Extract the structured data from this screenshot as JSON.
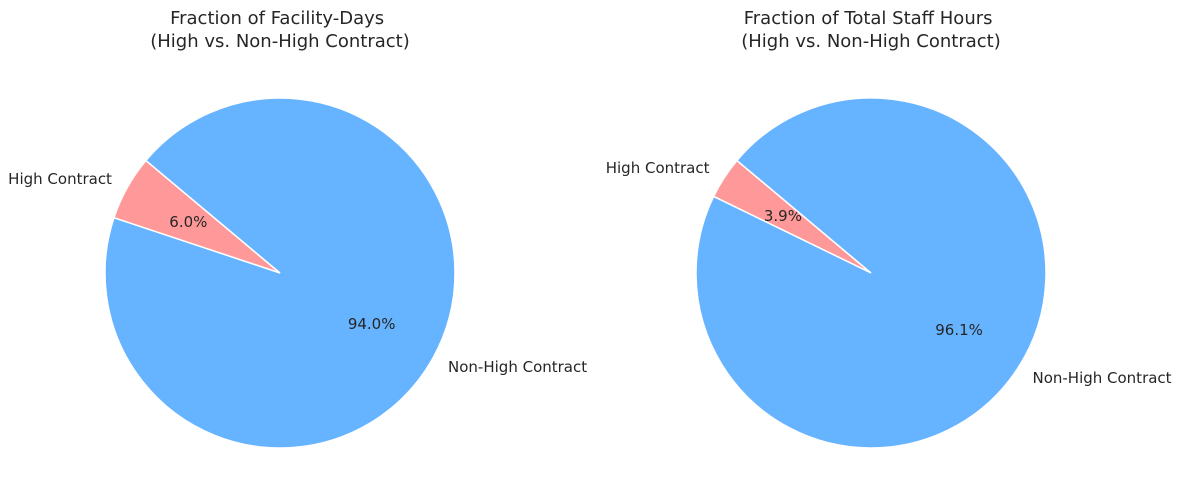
{
  "chart_data": [
    {
      "type": "pie",
      "title": [
        "Fraction of Facility-Days",
        "(High vs. Non-High Contract)"
      ],
      "categories": [
        "High Contract",
        "Non-High Contract"
      ],
      "values": [
        6.0,
        94.0
      ],
      "value_labels": [
        "6.0%",
        "94.0%"
      ],
      "colors": [
        "#ff9999",
        "#66b3ff"
      ],
      "start_angle": 140,
      "legend": "none"
    },
    {
      "type": "pie",
      "title": [
        "Fraction of Total Staff Hours",
        "(High vs. Non-High Contract)"
      ],
      "categories": [
        "High Contract",
        "Non-High Contract"
      ],
      "values": [
        3.9,
        96.1
      ],
      "value_labels": [
        "3.9%",
        "96.1%"
      ],
      "colors": [
        "#ff9999",
        "#66b3ff"
      ],
      "start_angle": 140,
      "legend": "none"
    }
  ]
}
